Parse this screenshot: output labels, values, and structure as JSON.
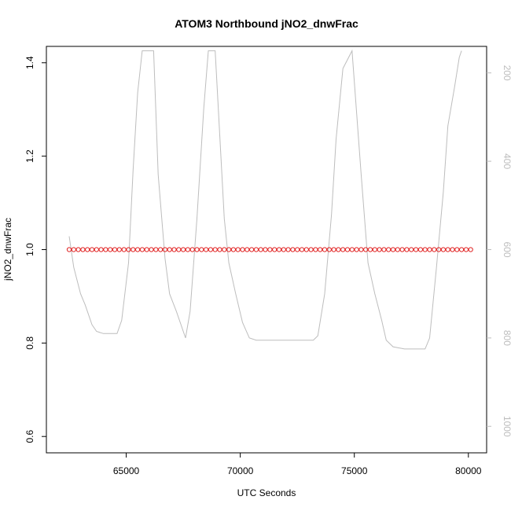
{
  "chart_data": {
    "type": "line",
    "title": "ATOM3 Northbound jNO2_dnwFrac",
    "xlabel": "UTC Seconds",
    "ylabel": "jNO2_dnwFrac",
    "xlim": [
      61500,
      80800
    ],
    "ylim": [
      0.565,
      1.435
    ],
    "y2lim": [
      1060,
      140
    ],
    "y2_reversed": true,
    "x_ticks": [
      65000,
      70000,
      75000,
      80000
    ],
    "x_tick_labels": [
      "65000",
      "70000",
      "75000",
      "80000"
    ],
    "y_ticks": [
      0.6,
      0.8,
      1.0,
      1.2,
      1.4
    ],
    "y_tick_labels": [
      "0.6",
      "0.8",
      "1.0",
      "1.2",
      "1.4"
    ],
    "y2_ticks": [
      200,
      400,
      600,
      800,
      1000
    ],
    "y2_tick_labels": [
      "200",
      "400",
      "600",
      "800",
      "1000"
    ],
    "grid": false,
    "colors": {
      "points": "#e02020",
      "secondary_line": "#bdbdbd",
      "secondary_axis": "#bdbdbd",
      "axis": "#000000"
    },
    "series": [
      {
        "marker": "open-circle",
        "axis": "left",
        "x_start": 62500,
        "x_end": 80100,
        "x_step": 200,
        "y_constant": 1.0
      },
      {
        "axis": "right",
        "style": "line",
        "x": [
          62500,
          62700,
          63000,
          63200,
          63500,
          63700,
          64000,
          64600,
          64800,
          65100,
          65300,
          65500,
          65700,
          66200,
          66400,
          66700,
          66900,
          67200,
          67400,
          67600,
          67800,
          68100,
          68400,
          68600,
          68900,
          69300,
          69500,
          69800,
          70100,
          70400,
          70700,
          71500,
          72500,
          73200,
          73400,
          73700,
          74000,
          74200,
          74500,
          74900,
          75300,
          75600,
          75900,
          76200,
          76400,
          76700,
          77200,
          78100,
          78300,
          78600,
          78900,
          79100,
          79400,
          79600,
          79700
        ],
        "y": [
          570,
          640,
          700,
          725,
          770,
          785,
          790,
          790,
          760,
          630,
          420,
          245,
          150,
          150,
          430,
          620,
          700,
          740,
          770,
          800,
          740,
          530,
          280,
          150,
          150,
          530,
          630,
          700,
          765,
          800,
          805,
          805,
          805,
          805,
          795,
          700,
          520,
          350,
          190,
          150,
          430,
          630,
          700,
          760,
          805,
          820,
          825,
          825,
          800,
          640,
          470,
          320,
          230,
          165,
          150
        ]
      }
    ]
  }
}
